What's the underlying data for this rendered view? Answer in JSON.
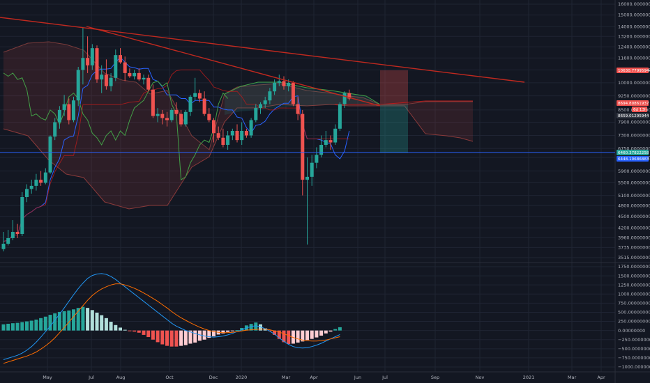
{
  "colors": {
    "background": "#131722",
    "grid": "#1f2433",
    "candle_up": "#26a69a",
    "candle_down": "#ef5350",
    "trendline": "#c0291f",
    "conversion_line": "#2962ff",
    "base_line": "#b71c1c",
    "lagging_span": "#43a047",
    "horizontal_level": "#2962ff",
    "macd_line": "#2196f3",
    "signal_line": "#ff6d00",
    "hist_up_strong": "#26a69a",
    "hist_up_weak": "#b2dfdb",
    "hist_down_strong": "#ef5350",
    "hist_down_weak": "#ffcdd2",
    "badge_red": "#ef5350",
    "badge_green": "#26a69a",
    "badge_dark": "#363a45",
    "badge_blue": "#2962ff",
    "risk_zone": "#ef5350",
    "reward_zone": "#26a69a"
  },
  "chart_data": [
    {
      "type": "candlestick",
      "price_scale": "log",
      "ylim": [
        3515,
        16000
      ],
      "x_labels": [
        "May",
        "Jul",
        "Aug",
        "Oct",
        "Dec",
        "2020",
        "Mar",
        "Apr",
        "Jun",
        "Jul",
        "Sep",
        "Nov",
        "2021",
        "Mar",
        "Apr"
      ],
      "y_ticks": [
        "16000.00000000",
        "15000.00000000",
        "14000.00000000",
        "13200.00000000",
        "12400.00000000",
        "11600.00000000",
        "10800.00000000",
        "10000.00000000",
        "9250.00000000",
        "8500.00000000",
        "7900.00000000",
        "7300.00000000",
        "6750.00000000",
        "6400.00000000",
        "5900.00000000",
        "5500.00000000",
        "5100.00000000",
        "4800.00000000",
        "4500.00000000",
        "4200.00000000",
        "3960.00000000",
        "3735.00000000",
        "3515.00000000"
      ],
      "candles": [
        {
          "o": 3700,
          "h": 4100,
          "l": 3650,
          "c": 3820
        },
        {
          "o": 3820,
          "h": 4150,
          "l": 3780,
          "c": 3950
        },
        {
          "o": 3950,
          "h": 4400,
          "l": 3900,
          "c": 4100
        },
        {
          "o": 4100,
          "h": 4300,
          "l": 3950,
          "c": 4050
        },
        {
          "o": 4050,
          "h": 5200,
          "l": 4000,
          "c": 5050
        },
        {
          "o": 5050,
          "h": 5450,
          "l": 4900,
          "c": 5300
        },
        {
          "o": 5300,
          "h": 5600,
          "l": 5150,
          "c": 5400
        },
        {
          "o": 5400,
          "h": 5800,
          "l": 5250,
          "c": 5600
        },
        {
          "o": 5600,
          "h": 5900,
          "l": 5400,
          "c": 5500
        },
        {
          "o": 5500,
          "h": 6000,
          "l": 5450,
          "c": 5850
        },
        {
          "o": 5850,
          "h": 7300,
          "l": 5800,
          "c": 7250
        },
        {
          "o": 7250,
          "h": 8100,
          "l": 7100,
          "c": 7900
        },
        {
          "o": 7900,
          "h": 8700,
          "l": 7600,
          "c": 8500
        },
        {
          "o": 8500,
          "h": 9300,
          "l": 8200,
          "c": 8800
        },
        {
          "o": 8800,
          "h": 9100,
          "l": 7800,
          "c": 8000
        },
        {
          "o": 8000,
          "h": 9200,
          "l": 7900,
          "c": 9000
        },
        {
          "o": 9000,
          "h": 11000,
          "l": 8700,
          "c": 10800
        },
        {
          "o": 10800,
          "h": 13900,
          "l": 9900,
          "c": 11600
        },
        {
          "o": 11600,
          "h": 13200,
          "l": 10600,
          "c": 11100
        },
        {
          "o": 11100,
          "h": 12600,
          "l": 10800,
          "c": 12300
        },
        {
          "o": 12300,
          "h": 12500,
          "l": 10000,
          "c": 10200
        },
        {
          "o": 10200,
          "h": 11100,
          "l": 9400,
          "c": 10500
        },
        {
          "o": 10500,
          "h": 11500,
          "l": 9600,
          "c": 9800
        },
        {
          "o": 9800,
          "h": 10600,
          "l": 9500,
          "c": 10300
        },
        {
          "o": 10300,
          "h": 12200,
          "l": 10100,
          "c": 11800
        },
        {
          "o": 11800,
          "h": 12300,
          "l": 11200,
          "c": 11300
        },
        {
          "o": 11300,
          "h": 11700,
          "l": 10100,
          "c": 10600
        },
        {
          "o": 10600,
          "h": 10900,
          "l": 10300,
          "c": 10400
        },
        {
          "o": 10400,
          "h": 10800,
          "l": 10200,
          "c": 10600
        },
        {
          "o": 10600,
          "h": 10900,
          "l": 10100,
          "c": 10200
        },
        {
          "o": 10200,
          "h": 10500,
          "l": 9900,
          "c": 10300
        },
        {
          "o": 10300,
          "h": 10500,
          "l": 9500,
          "c": 9600
        },
        {
          "o": 9600,
          "h": 9900,
          "l": 8100,
          "c": 8200
        },
        {
          "o": 8200,
          "h": 8600,
          "l": 7900,
          "c": 8300
        },
        {
          "o": 8300,
          "h": 8500,
          "l": 7800,
          "c": 8100
        },
        {
          "o": 8100,
          "h": 8400,
          "l": 7700,
          "c": 8000
        },
        {
          "o": 8000,
          "h": 8600,
          "l": 7900,
          "c": 8500
        },
        {
          "o": 8500,
          "h": 8900,
          "l": 8200,
          "c": 8300
        },
        {
          "o": 8300,
          "h": 8500,
          "l": 7700,
          "c": 7800
        },
        {
          "o": 7800,
          "h": 8500,
          "l": 7700,
          "c": 8400
        },
        {
          "o": 8400,
          "h": 9300,
          "l": 8200,
          "c": 9200
        },
        {
          "o": 9200,
          "h": 10300,
          "l": 9000,
          "c": 9400
        },
        {
          "o": 9400,
          "h": 9600,
          "l": 8900,
          "c": 9100
        },
        {
          "o": 9100,
          "h": 9500,
          "l": 8200,
          "c": 8300
        },
        {
          "o": 8300,
          "h": 8600,
          "l": 7900,
          "c": 8000
        },
        {
          "o": 8000,
          "h": 8100,
          "l": 7000,
          "c": 7400
        },
        {
          "o": 7400,
          "h": 7700,
          "l": 7100,
          "c": 7200
        },
        {
          "o": 7200,
          "h": 7600,
          "l": 6800,
          "c": 6900
        },
        {
          "o": 6900,
          "h": 7500,
          "l": 6700,
          "c": 7300
        },
        {
          "o": 7300,
          "h": 7600,
          "l": 7100,
          "c": 7500
        },
        {
          "o": 7500,
          "h": 7800,
          "l": 7000,
          "c": 7100
        },
        {
          "o": 7100,
          "h": 7900,
          "l": 6900,
          "c": 7500
        },
        {
          "o": 7500,
          "h": 7600,
          "l": 7200,
          "c": 7300
        },
        {
          "o": 7300,
          "h": 8100,
          "l": 7200,
          "c": 8000
        },
        {
          "o": 8000,
          "h": 8800,
          "l": 7900,
          "c": 8600
        },
        {
          "o": 8600,
          "h": 8900,
          "l": 8300,
          "c": 8800
        },
        {
          "o": 8800,
          "h": 9200,
          "l": 8600,
          "c": 9000
        },
        {
          "o": 9000,
          "h": 9700,
          "l": 8800,
          "c": 9500
        },
        {
          "o": 9500,
          "h": 10200,
          "l": 9300,
          "c": 10000
        },
        {
          "o": 10000,
          "h": 10500,
          "l": 9800,
          "c": 10100
        },
        {
          "o": 10100,
          "h": 10400,
          "l": 9600,
          "c": 9800
        },
        {
          "o": 9800,
          "h": 10200,
          "l": 9500,
          "c": 10000
        },
        {
          "o": 10000,
          "h": 10100,
          "l": 8700,
          "c": 8800
        },
        {
          "o": 8800,
          "h": 9200,
          "l": 8000,
          "c": 8300
        },
        {
          "o": 8300,
          "h": 8500,
          "l": 5100,
          "c": 5600
        },
        {
          "o": 5600,
          "h": 6400,
          "l": 3800,
          "c": 5700
        },
        {
          "o": 5700,
          "h": 6500,
          "l": 5400,
          "c": 6200
        },
        {
          "o": 6200,
          "h": 6800,
          "l": 6000,
          "c": 6500
        },
        {
          "o": 6500,
          "h": 7300,
          "l": 6400,
          "c": 6900
        },
        {
          "o": 6900,
          "h": 7500,
          "l": 6800,
          "c": 7100
        },
        {
          "o": 7100,
          "h": 7300,
          "l": 6700,
          "c": 7000
        },
        {
          "o": 7000,
          "h": 7800,
          "l": 6900,
          "c": 7600
        },
        {
          "o": 7600,
          "h": 8900,
          "l": 7500,
          "c": 8800
        },
        {
          "o": 8800,
          "h": 9500,
          "l": 8600,
          "c": 9400
        },
        {
          "o": 9400,
          "h": 9600,
          "l": 9000,
          "c": 9100
        }
      ],
      "annotations": [
        {
          "text": "10630.77995944",
          "style": "badge_red"
        },
        {
          "text": "8694.80861937",
          "style": "badge_red"
        },
        {
          "text": "6d 13h",
          "style": "badge_red"
        },
        {
          "text": "8659.01295944",
          "style": "badge_dark"
        },
        {
          "text": "6460.37822258",
          "style": "badge_green"
        },
        {
          "text": "6448.10686883",
          "style": "badge_blue"
        }
      ],
      "grid": true
    },
    {
      "type": "histogram_line",
      "name": "MACD",
      "ylim": [
        -1000,
        1750
      ],
      "y_ticks": [
        "1750.00000000",
        "1500.00000000",
        "1250.00000000",
        "1000.00000000",
        "750.00000000",
        "500.00000000",
        "250.00000000",
        "0.00000000",
        "−250.00000000",
        "−500.00000000",
        "−750.00000000",
        "−1000.00000000"
      ],
      "histogram": [
        170,
        185,
        200,
        210,
        230,
        250,
        270,
        300,
        340,
        380,
        430,
        470,
        510,
        530,
        550,
        580,
        620,
        650,
        620,
        560,
        490,
        420,
        340,
        240,
        150,
        80,
        20,
        -10,
        -30,
        -60,
        -120,
        -180,
        -250,
        -320,
        -380,
        -420,
        -440,
        -440,
        -420,
        -400,
        -360,
        -330,
        -280,
        -250,
        -200,
        -160,
        -110,
        -80,
        -40,
        -20,
        10,
        70,
        140,
        180,
        220,
        170,
        60,
        -10,
        -120,
        -230,
        -320,
        -370,
        -360,
        -330,
        -300,
        -260,
        -230,
        -190,
        -140,
        -80,
        -30,
        40,
        90
      ],
      "macd": [
        -800,
        -760,
        -720,
        -680,
        -620,
        -540,
        -440,
        -320,
        -180,
        -30,
        120,
        280,
        450,
        620,
        800,
        980,
        1150,
        1300,
        1430,
        1510,
        1550,
        1560,
        1540,
        1480,
        1400,
        1300,
        1200,
        1100,
        1000,
        900,
        800,
        700,
        600,
        500,
        400,
        300,
        200,
        120,
        60,
        0,
        -40,
        -80,
        -120,
        -150,
        -170,
        -180,
        -170,
        -150,
        -120,
        -80,
        -30,
        20,
        70,
        110,
        130,
        100,
        50,
        -20,
        -100,
        -200,
        -300,
        -380,
        -440,
        -470,
        -480,
        -470,
        -440,
        -400,
        -350,
        -290,
        -230,
        -170,
        -110
      ],
      "signal": [
        -900,
        -860,
        -820,
        -780,
        -740,
        -700,
        -650,
        -590,
        -510,
        -420,
        -320,
        -200,
        -60,
        80,
        230,
        380,
        530,
        680,
        830,
        960,
        1060,
        1140,
        1200,
        1250,
        1280,
        1280,
        1250,
        1210,
        1160,
        1100,
        1030,
        960,
        880,
        800,
        710,
        620,
        520,
        430,
        350,
        280,
        210,
        150,
        90,
        40,
        0,
        -30,
        -50,
        -60,
        -60,
        -50,
        -30,
        -10,
        10,
        20,
        30,
        40,
        40,
        20,
        -10,
        -40,
        -90,
        -140,
        -190,
        -230,
        -260,
        -280,
        -290,
        -290,
        -280,
        -260,
        -230,
        -200,
        -170
      ],
      "grid": true
    }
  ]
}
